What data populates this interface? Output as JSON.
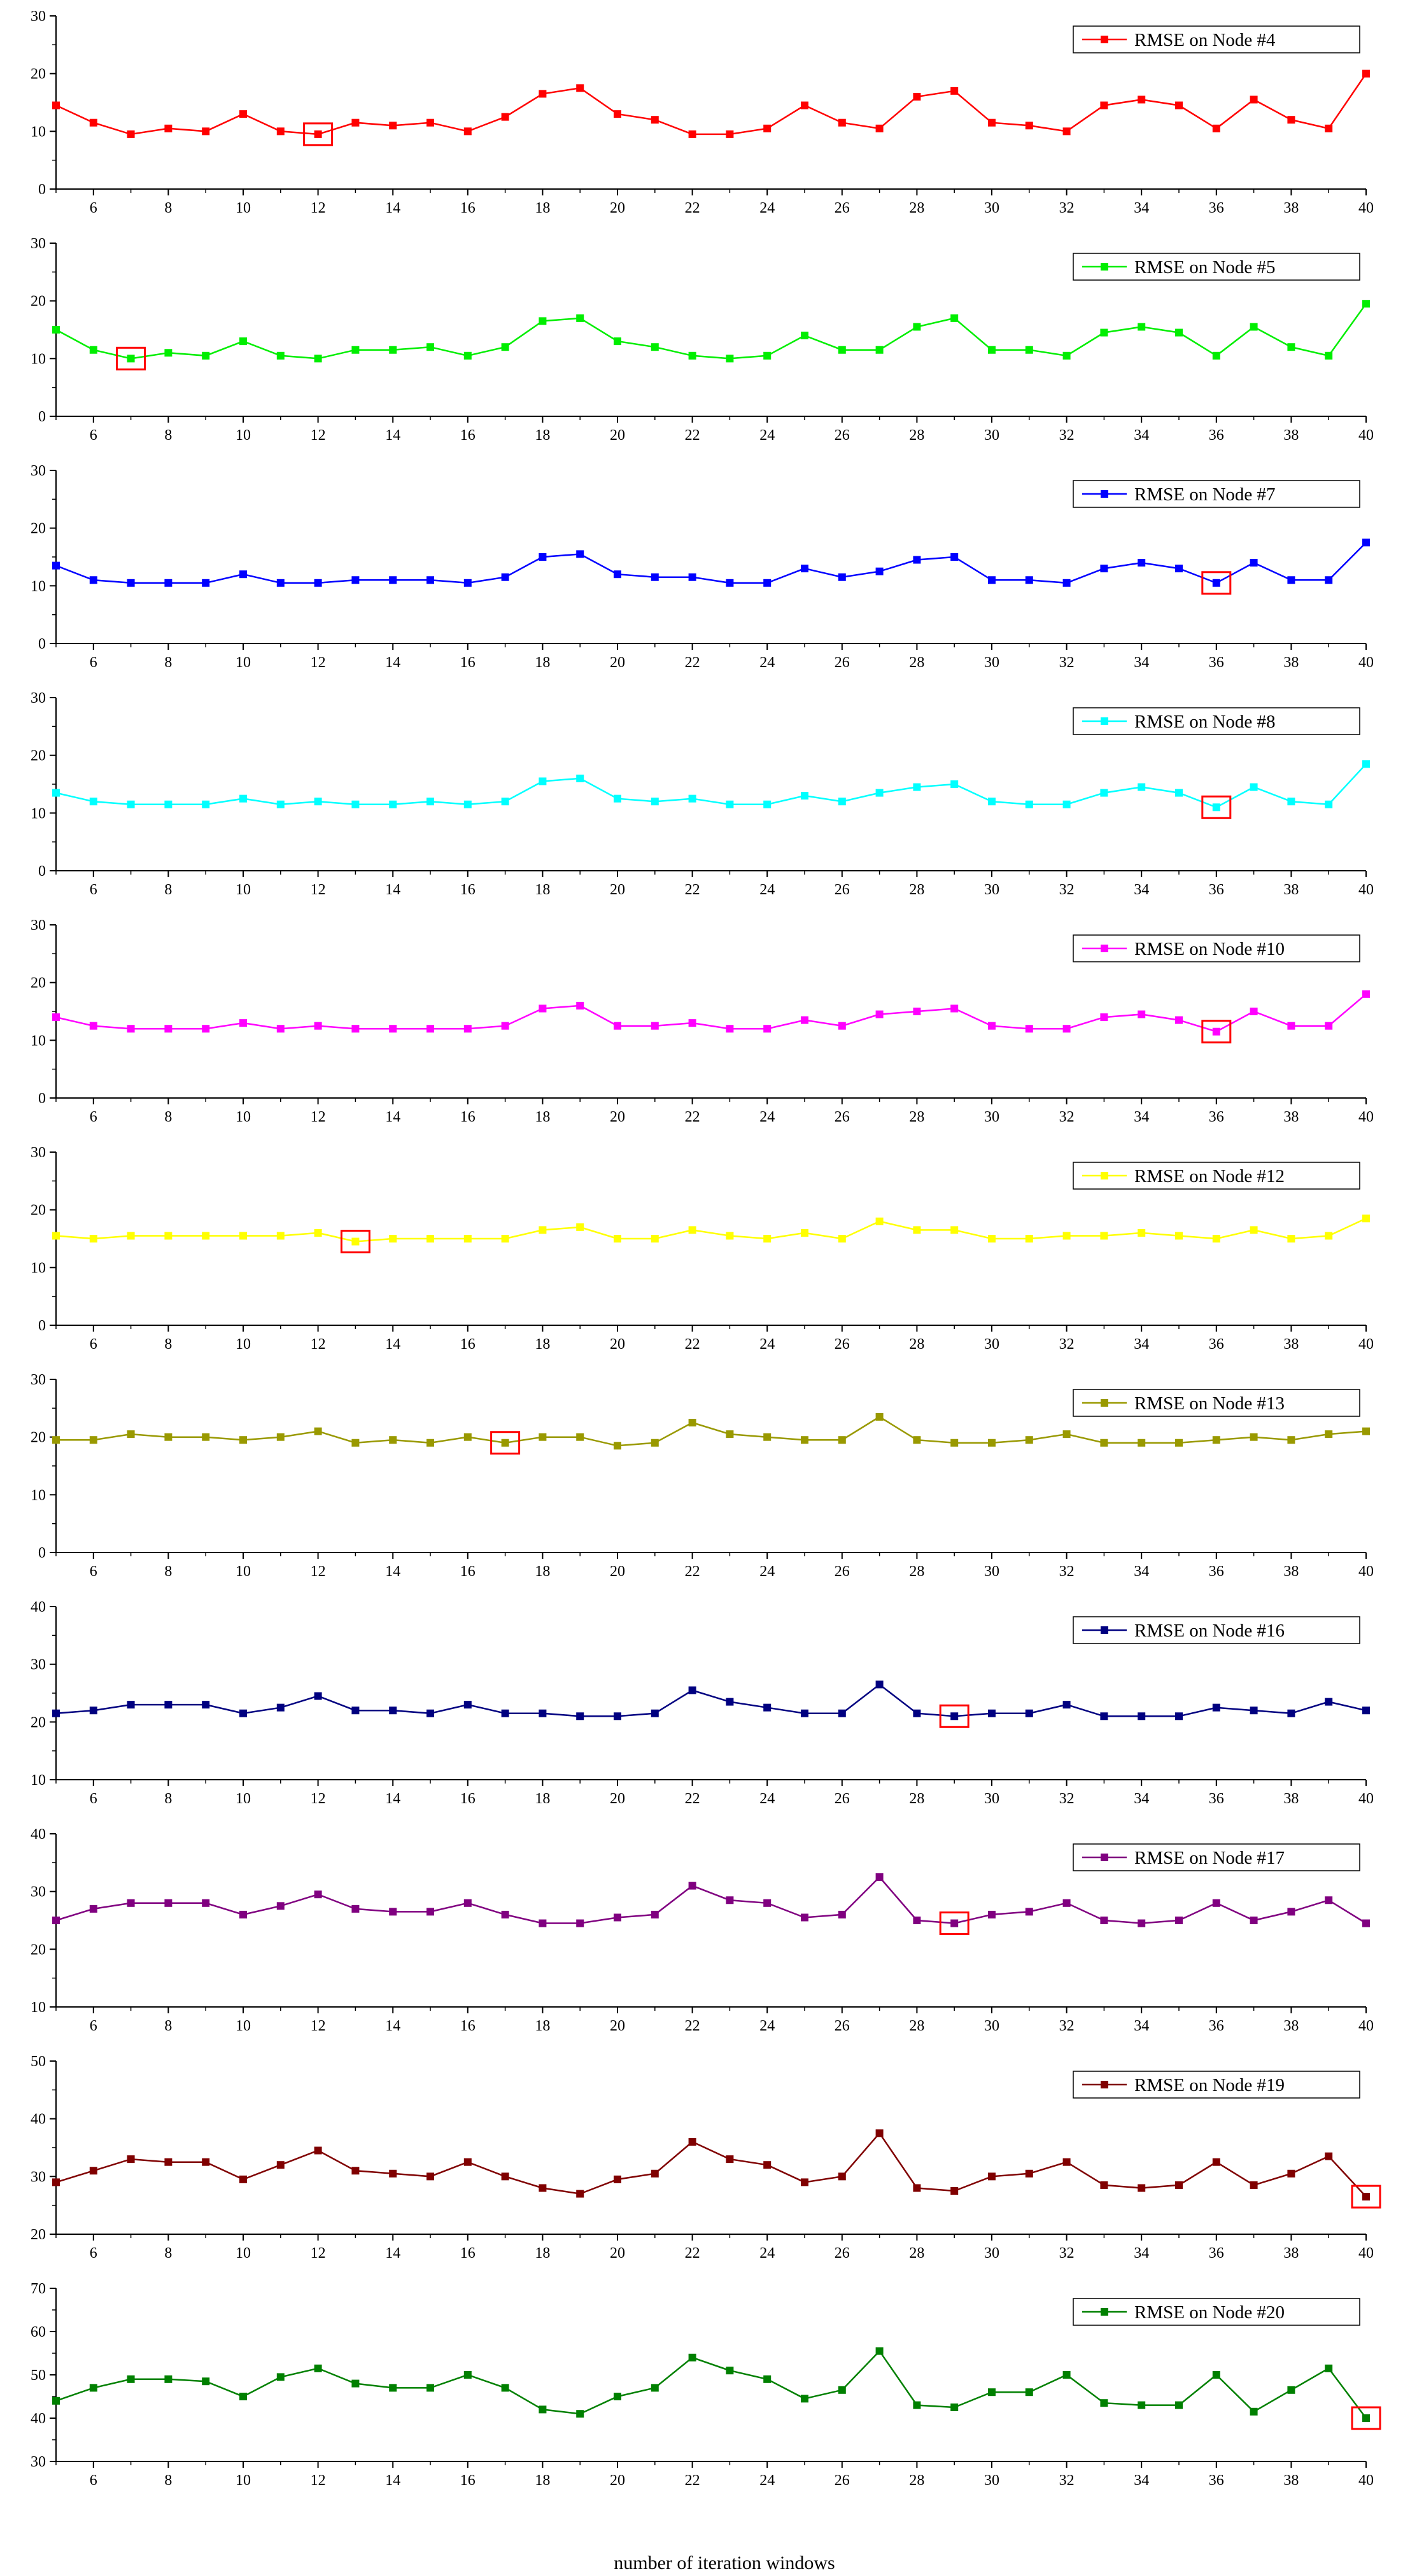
{
  "figure": {
    "xlabel": "number of iteration windows"
  },
  "chart_data": [
    {
      "type": "line",
      "series": [
        {
          "name": "RMSE on Node #4",
          "color": "#ff0000",
          "values": [
            14.5,
            11.5,
            9.5,
            10.5,
            10.0,
            13.0,
            10.0,
            9.5,
            11.5,
            11.0,
            11.5,
            10.0,
            12.5,
            16.5,
            17.5,
            13.0,
            12.0,
            9.5,
            9.5,
            10.5,
            14.5,
            11.5,
            10.5,
            16.0,
            17.0,
            11.5,
            11.0,
            10.0,
            14.5,
            15.5,
            14.5,
            10.5,
            15.5,
            12.0,
            10.5,
            20.0
          ]
        }
      ],
      "x": [
        5,
        6,
        7,
        8,
        9,
        10,
        11,
        12,
        13,
        14,
        15,
        16,
        17,
        18,
        19,
        20,
        21,
        22,
        23,
        24,
        25,
        26,
        27,
        28,
        29,
        30,
        31,
        32,
        33,
        34,
        35,
        36,
        37,
        38,
        39,
        40
      ],
      "xlim": [
        5,
        40
      ],
      "ylim": [
        0,
        30
      ],
      "xticks": [
        6,
        8,
        10,
        12,
        14,
        16,
        18,
        20,
        22,
        24,
        26,
        28,
        30,
        32,
        34,
        36,
        38,
        40
      ],
      "yticks": [
        0,
        10,
        20,
        30
      ],
      "highlight_x": 12,
      "legend": "top-right"
    },
    {
      "type": "line",
      "series": [
        {
          "name": "RMSE on Node #5",
          "color": "#00ee00",
          "values": [
            15.0,
            11.5,
            10.0,
            11.0,
            10.5,
            13.0,
            10.5,
            10.0,
            11.5,
            11.5,
            12.0,
            10.5,
            12.0,
            16.5,
            17.0,
            13.0,
            12.0,
            10.5,
            10.0,
            10.5,
            14.0,
            11.5,
            11.5,
            15.5,
            17.0,
            11.5,
            11.5,
            10.5,
            14.5,
            15.5,
            14.5,
            10.5,
            15.5,
            12.0,
            10.5,
            19.5
          ]
        }
      ],
      "x": [
        5,
        6,
        7,
        8,
        9,
        10,
        11,
        12,
        13,
        14,
        15,
        16,
        17,
        18,
        19,
        20,
        21,
        22,
        23,
        24,
        25,
        26,
        27,
        28,
        29,
        30,
        31,
        32,
        33,
        34,
        35,
        36,
        37,
        38,
        39,
        40
      ],
      "xlim": [
        5,
        40
      ],
      "ylim": [
        0,
        30
      ],
      "xticks": [
        6,
        8,
        10,
        12,
        14,
        16,
        18,
        20,
        22,
        24,
        26,
        28,
        30,
        32,
        34,
        36,
        38,
        40
      ],
      "yticks": [
        0,
        10,
        20,
        30
      ],
      "highlight_x": 7,
      "legend": "top-right"
    },
    {
      "type": "line",
      "series": [
        {
          "name": "RMSE on Node #7",
          "color": "#0000ff",
          "values": [
            13.5,
            11.0,
            10.5,
            10.5,
            10.5,
            12.0,
            10.5,
            10.5,
            11.0,
            11.0,
            11.0,
            10.5,
            11.5,
            15.0,
            15.5,
            12.0,
            11.5,
            11.5,
            10.5,
            10.5,
            13.0,
            11.5,
            12.5,
            14.5,
            15.0,
            11.0,
            11.0,
            10.5,
            13.0,
            14.0,
            13.0,
            10.5,
            14.0,
            11.0,
            11.0,
            17.5
          ]
        }
      ],
      "x": [
        5,
        6,
        7,
        8,
        9,
        10,
        11,
        12,
        13,
        14,
        15,
        16,
        17,
        18,
        19,
        20,
        21,
        22,
        23,
        24,
        25,
        26,
        27,
        28,
        29,
        30,
        31,
        32,
        33,
        34,
        35,
        36,
        37,
        38,
        39,
        40
      ],
      "xlim": [
        5,
        40
      ],
      "ylim": [
        0,
        30
      ],
      "xticks": [
        6,
        8,
        10,
        12,
        14,
        16,
        18,
        20,
        22,
        24,
        26,
        28,
        30,
        32,
        34,
        36,
        38,
        40
      ],
      "yticks": [
        0,
        10,
        20,
        30
      ],
      "highlight_x": 36,
      "legend": "top-right"
    },
    {
      "type": "line",
      "series": [
        {
          "name": "RMSE on Node #8",
          "color": "#00ffff",
          "values": [
            13.5,
            12.0,
            11.5,
            11.5,
            11.5,
            12.5,
            11.5,
            12.0,
            11.5,
            11.5,
            12.0,
            11.5,
            12.0,
            15.5,
            16.0,
            12.5,
            12.0,
            12.5,
            11.5,
            11.5,
            13.0,
            12.0,
            13.5,
            14.5,
            15.0,
            12.0,
            11.5,
            11.5,
            13.5,
            14.5,
            13.5,
            11.0,
            14.5,
            12.0,
            11.5,
            18.5
          ]
        }
      ],
      "x": [
        5,
        6,
        7,
        8,
        9,
        10,
        11,
        12,
        13,
        14,
        15,
        16,
        17,
        18,
        19,
        20,
        21,
        22,
        23,
        24,
        25,
        26,
        27,
        28,
        29,
        30,
        31,
        32,
        33,
        34,
        35,
        36,
        37,
        38,
        39,
        40
      ],
      "xlim": [
        5,
        40
      ],
      "ylim": [
        0,
        30
      ],
      "xticks": [
        6,
        8,
        10,
        12,
        14,
        16,
        18,
        20,
        22,
        24,
        26,
        28,
        30,
        32,
        34,
        36,
        38,
        40
      ],
      "yticks": [
        0,
        10,
        20,
        30
      ],
      "highlight_x": 36,
      "legend": "top-right"
    },
    {
      "type": "line",
      "series": [
        {
          "name": "RMSE on Node #10",
          "color": "#ff00ff",
          "values": [
            14.0,
            12.5,
            12.0,
            12.0,
            12.0,
            13.0,
            12.0,
            12.5,
            12.0,
            12.0,
            12.0,
            12.0,
            12.5,
            15.5,
            16.0,
            12.5,
            12.5,
            13.0,
            12.0,
            12.0,
            13.5,
            12.5,
            14.5,
            15.0,
            15.5,
            12.5,
            12.0,
            12.0,
            14.0,
            14.5,
            13.5,
            11.5,
            15.0,
            12.5,
            12.5,
            18.0
          ]
        }
      ],
      "x": [
        5,
        6,
        7,
        8,
        9,
        10,
        11,
        12,
        13,
        14,
        15,
        16,
        17,
        18,
        19,
        20,
        21,
        22,
        23,
        24,
        25,
        26,
        27,
        28,
        29,
        30,
        31,
        32,
        33,
        34,
        35,
        36,
        37,
        38,
        39,
        40
      ],
      "xlim": [
        5,
        40
      ],
      "ylim": [
        0,
        30
      ],
      "xticks": [
        6,
        8,
        10,
        12,
        14,
        16,
        18,
        20,
        22,
        24,
        26,
        28,
        30,
        32,
        34,
        36,
        38,
        40
      ],
      "yticks": [
        0,
        10,
        20,
        30
      ],
      "highlight_x": 36,
      "legend": "top-right"
    },
    {
      "type": "line",
      "series": [
        {
          "name": "RMSE on Node #12",
          "color": "#ffff00",
          "values": [
            15.5,
            15.0,
            15.5,
            15.5,
            15.5,
            15.5,
            15.5,
            16.0,
            14.5,
            15.0,
            15.0,
            15.0,
            15.0,
            16.5,
            17.0,
            15.0,
            15.0,
            16.5,
            15.5,
            15.0,
            16.0,
            15.0,
            18.0,
            16.5,
            16.5,
            15.0,
            15.0,
            15.5,
            15.5,
            16.0,
            15.5,
            15.0,
            16.5,
            15.0,
            15.5,
            18.5
          ]
        }
      ],
      "x": [
        5,
        6,
        7,
        8,
        9,
        10,
        11,
        12,
        13,
        14,
        15,
        16,
        17,
        18,
        19,
        20,
        21,
        22,
        23,
        24,
        25,
        26,
        27,
        28,
        29,
        30,
        31,
        32,
        33,
        34,
        35,
        36,
        37,
        38,
        39,
        40
      ],
      "xlim": [
        5,
        40
      ],
      "ylim": [
        0,
        30
      ],
      "xticks": [
        6,
        8,
        10,
        12,
        14,
        16,
        18,
        20,
        22,
        24,
        26,
        28,
        30,
        32,
        34,
        36,
        38,
        40
      ],
      "yticks": [
        0,
        10,
        20,
        30
      ],
      "highlight_x": 13,
      "legend": "top-right"
    },
    {
      "type": "line",
      "series": [
        {
          "name": "RMSE on Node #13",
          "color": "#999900",
          "values": [
            19.5,
            19.5,
            20.5,
            20.0,
            20.0,
            19.5,
            20.0,
            21.0,
            19.0,
            19.5,
            19.0,
            20.0,
            19.0,
            20.0,
            20.0,
            18.5,
            19.0,
            22.5,
            20.5,
            20.0,
            19.5,
            19.5,
            23.5,
            19.5,
            19.0,
            19.0,
            19.5,
            20.5,
            19.0,
            19.0,
            19.0,
            19.5,
            20.0,
            19.5,
            20.5,
            21.0
          ]
        }
      ],
      "x": [
        5,
        6,
        7,
        8,
        9,
        10,
        11,
        12,
        13,
        14,
        15,
        16,
        17,
        18,
        19,
        20,
        21,
        22,
        23,
        24,
        25,
        26,
        27,
        28,
        29,
        30,
        31,
        32,
        33,
        34,
        35,
        36,
        37,
        38,
        39,
        40
      ],
      "xlim": [
        5,
        40
      ],
      "ylim": [
        0,
        30
      ],
      "xticks": [
        6,
        8,
        10,
        12,
        14,
        16,
        18,
        20,
        22,
        24,
        26,
        28,
        30,
        32,
        34,
        36,
        38,
        40
      ],
      "yticks": [
        0,
        10,
        20,
        30
      ],
      "highlight_x": 17,
      "legend": "top-right"
    },
    {
      "type": "line",
      "series": [
        {
          "name": "RMSE on Node #16",
          "color": "#000080",
          "values": [
            21.5,
            22.0,
            23.0,
            23.0,
            23.0,
            21.5,
            22.5,
            24.5,
            22.0,
            22.0,
            21.5,
            23.0,
            21.5,
            21.5,
            21.0,
            21.0,
            21.5,
            25.5,
            23.5,
            22.5,
            21.5,
            21.5,
            26.5,
            21.5,
            21.0,
            21.5,
            21.5,
            23.0,
            21.0,
            21.0,
            21.0,
            22.5,
            22.0,
            21.5,
            23.5,
            22.0
          ]
        }
      ],
      "x": [
        5,
        6,
        7,
        8,
        9,
        10,
        11,
        12,
        13,
        14,
        15,
        16,
        17,
        18,
        19,
        20,
        21,
        22,
        23,
        24,
        25,
        26,
        27,
        28,
        29,
        30,
        31,
        32,
        33,
        34,
        35,
        36,
        37,
        38,
        39,
        40
      ],
      "xlim": [
        5,
        40
      ],
      "ylim": [
        10,
        40
      ],
      "xticks": [
        6,
        8,
        10,
        12,
        14,
        16,
        18,
        20,
        22,
        24,
        26,
        28,
        30,
        32,
        34,
        36,
        38,
        40
      ],
      "yticks": [
        10,
        20,
        30,
        40
      ],
      "highlight_x": 29,
      "legend": "top-right"
    },
    {
      "type": "line",
      "series": [
        {
          "name": "RMSE on Node #17",
          "color": "#800080",
          "values": [
            25.0,
            27.0,
            28.0,
            28.0,
            28.0,
            26.0,
            27.5,
            29.5,
            27.0,
            26.5,
            26.5,
            28.0,
            26.0,
            24.5,
            24.5,
            25.5,
            26.0,
            31.0,
            28.5,
            28.0,
            25.5,
            26.0,
            32.5,
            25.0,
            24.5,
            26.0,
            26.5,
            28.0,
            25.0,
            24.5,
            25.0,
            28.0,
            25.0,
            26.5,
            28.5,
            24.5
          ]
        }
      ],
      "x": [
        5,
        6,
        7,
        8,
        9,
        10,
        11,
        12,
        13,
        14,
        15,
        16,
        17,
        18,
        19,
        20,
        21,
        22,
        23,
        24,
        25,
        26,
        27,
        28,
        29,
        30,
        31,
        32,
        33,
        34,
        35,
        36,
        37,
        38,
        39,
        40
      ],
      "xlim": [
        5,
        40
      ],
      "ylim": [
        10,
        40
      ],
      "xticks": [
        6,
        8,
        10,
        12,
        14,
        16,
        18,
        20,
        22,
        24,
        26,
        28,
        30,
        32,
        34,
        36,
        38,
        40
      ],
      "yticks": [
        10,
        20,
        30,
        40
      ],
      "highlight_x": 29,
      "legend": "top-right"
    },
    {
      "type": "line",
      "series": [
        {
          "name": "RMSE on Node #19",
          "color": "#800000",
          "values": [
            29.0,
            31.0,
            33.0,
            32.5,
            32.5,
            29.5,
            32.0,
            34.5,
            31.0,
            30.5,
            30.0,
            32.5,
            30.0,
            28.0,
            27.0,
            29.5,
            30.5,
            36.0,
            33.0,
            32.0,
            29.0,
            30.0,
            37.5,
            28.0,
            27.5,
            30.0,
            30.5,
            32.5,
            28.5,
            28.0,
            28.5,
            32.5,
            28.5,
            30.5,
            33.5,
            26.5
          ]
        }
      ],
      "x": [
        5,
        6,
        7,
        8,
        9,
        10,
        11,
        12,
        13,
        14,
        15,
        16,
        17,
        18,
        19,
        20,
        21,
        22,
        23,
        24,
        25,
        26,
        27,
        28,
        29,
        30,
        31,
        32,
        33,
        34,
        35,
        36,
        37,
        38,
        39,
        40
      ],
      "xlim": [
        5,
        40
      ],
      "ylim": [
        20,
        50
      ],
      "xticks": [
        6,
        8,
        10,
        12,
        14,
        16,
        18,
        20,
        22,
        24,
        26,
        28,
        30,
        32,
        34,
        36,
        38,
        40
      ],
      "yticks": [
        20,
        30,
        40,
        50
      ],
      "highlight_x": 40,
      "legend": "top-right"
    },
    {
      "type": "line",
      "series": [
        {
          "name": "RMSE on Node #20",
          "color": "#008000",
          "values": [
            44.0,
            47.0,
            49.0,
            49.0,
            48.5,
            45.0,
            49.5,
            51.5,
            48.0,
            47.0,
            47.0,
            50.0,
            47.0,
            42.0,
            41.0,
            45.0,
            47.0,
            54.0,
            51.0,
            49.0,
            44.5,
            46.5,
            55.5,
            43.0,
            42.5,
            46.0,
            46.0,
            50.0,
            43.5,
            43.0,
            43.0,
            50.0,
            41.5,
            46.5,
            51.5,
            40.0
          ]
        }
      ],
      "x": [
        5,
        6,
        7,
        8,
        9,
        10,
        11,
        12,
        13,
        14,
        15,
        16,
        17,
        18,
        19,
        20,
        21,
        22,
        23,
        24,
        25,
        26,
        27,
        28,
        29,
        30,
        31,
        32,
        33,
        34,
        35,
        36,
        37,
        38,
        39,
        40
      ],
      "xlim": [
        5,
        40
      ],
      "ylim": [
        30,
        70
      ],
      "xticks": [
        6,
        8,
        10,
        12,
        14,
        16,
        18,
        20,
        22,
        24,
        26,
        28,
        30,
        32,
        34,
        36,
        38,
        40
      ],
      "yticks": [
        30,
        40,
        50,
        60,
        70
      ],
      "highlight_x": 40,
      "legend": "top-right"
    }
  ]
}
